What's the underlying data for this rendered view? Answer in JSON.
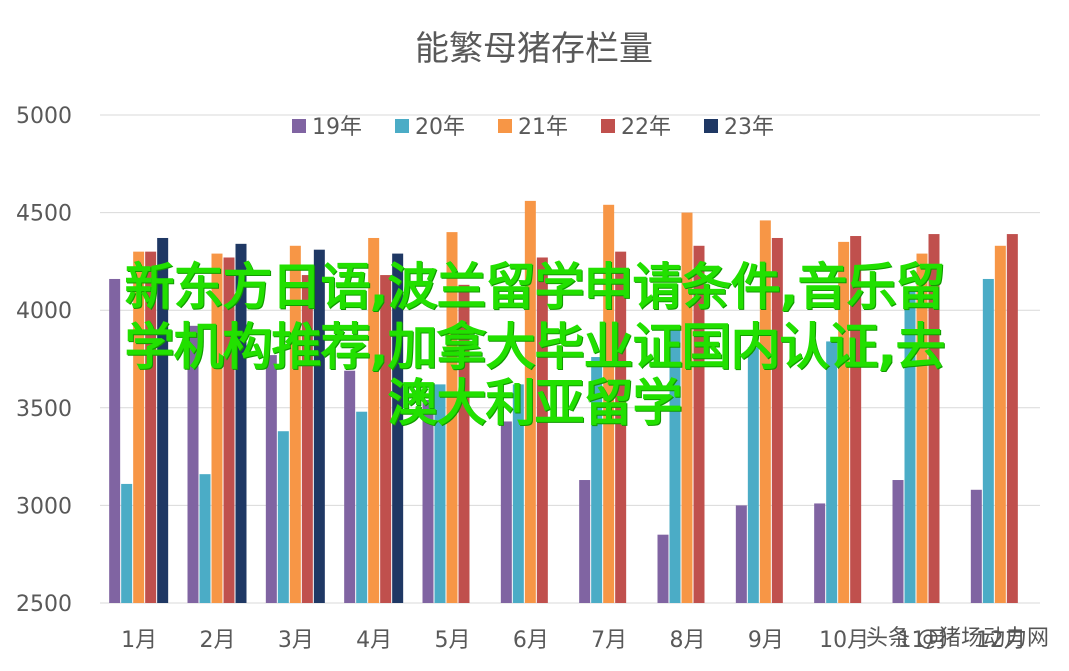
{
  "chart_data": {
    "type": "bar",
    "title": "能繁母猪存栏量",
    "xlabel": "",
    "ylabel": "",
    "ylim": [
      2500,
      5000
    ],
    "yticks": [
      2500,
      3000,
      3500,
      4000,
      4500,
      5000
    ],
    "grid": true,
    "legend_position": "top",
    "categories": [
      "1月",
      "2月",
      "3月",
      "4月",
      "5月",
      "6月",
      "7月",
      "8月",
      "9月",
      "10月",
      "11月",
      "12月"
    ],
    "series": [
      {
        "name": "19年",
        "color": "#8064a2",
        "values": [
          4160,
          3920,
          3770,
          3690,
          3540,
          3430,
          3130,
          2850,
          3000,
          3010,
          3130,
          3080
        ]
      },
      {
        "name": "20年",
        "color": "#4bacc6",
        "values": [
          3110,
          3160,
          3380,
          3480,
          3620,
          3620,
          3760,
          3910,
          3810,
          3840,
          4100,
          4160
        ]
      },
      {
        "name": "21年",
        "color": "#f79646",
        "values": [
          4300,
          4290,
          4330,
          4370,
          4400,
          4560,
          4540,
          4500,
          4460,
          4350,
          4290,
          4330
        ]
      },
      {
        "name": "22年",
        "color": "#c0504d",
        "values": [
          4300,
          4270,
          4180,
          4180,
          4130,
          4270,
          4300,
          4330,
          4370,
          4380,
          4390,
          4390
        ]
      },
      {
        "name": "23年",
        "color": "#1f3864",
        "values": [
          4370,
          4340,
          4310,
          4290,
          null,
          null,
          null,
          null,
          null,
          null,
          null,
          null
        ]
      }
    ]
  },
  "overlay": {
    "line1": "新东方日语,波兰留学申请条件,音乐留",
    "line2": "学机构推荐,加拿大毕业证国内认证,去",
    "line3": "澳大利亚留学"
  },
  "watermark": "头条 @猪场动力网",
  "colors": {
    "grid": "#d9d9d9",
    "axis_text": "#595959",
    "overlay_text": "#22e000"
  }
}
